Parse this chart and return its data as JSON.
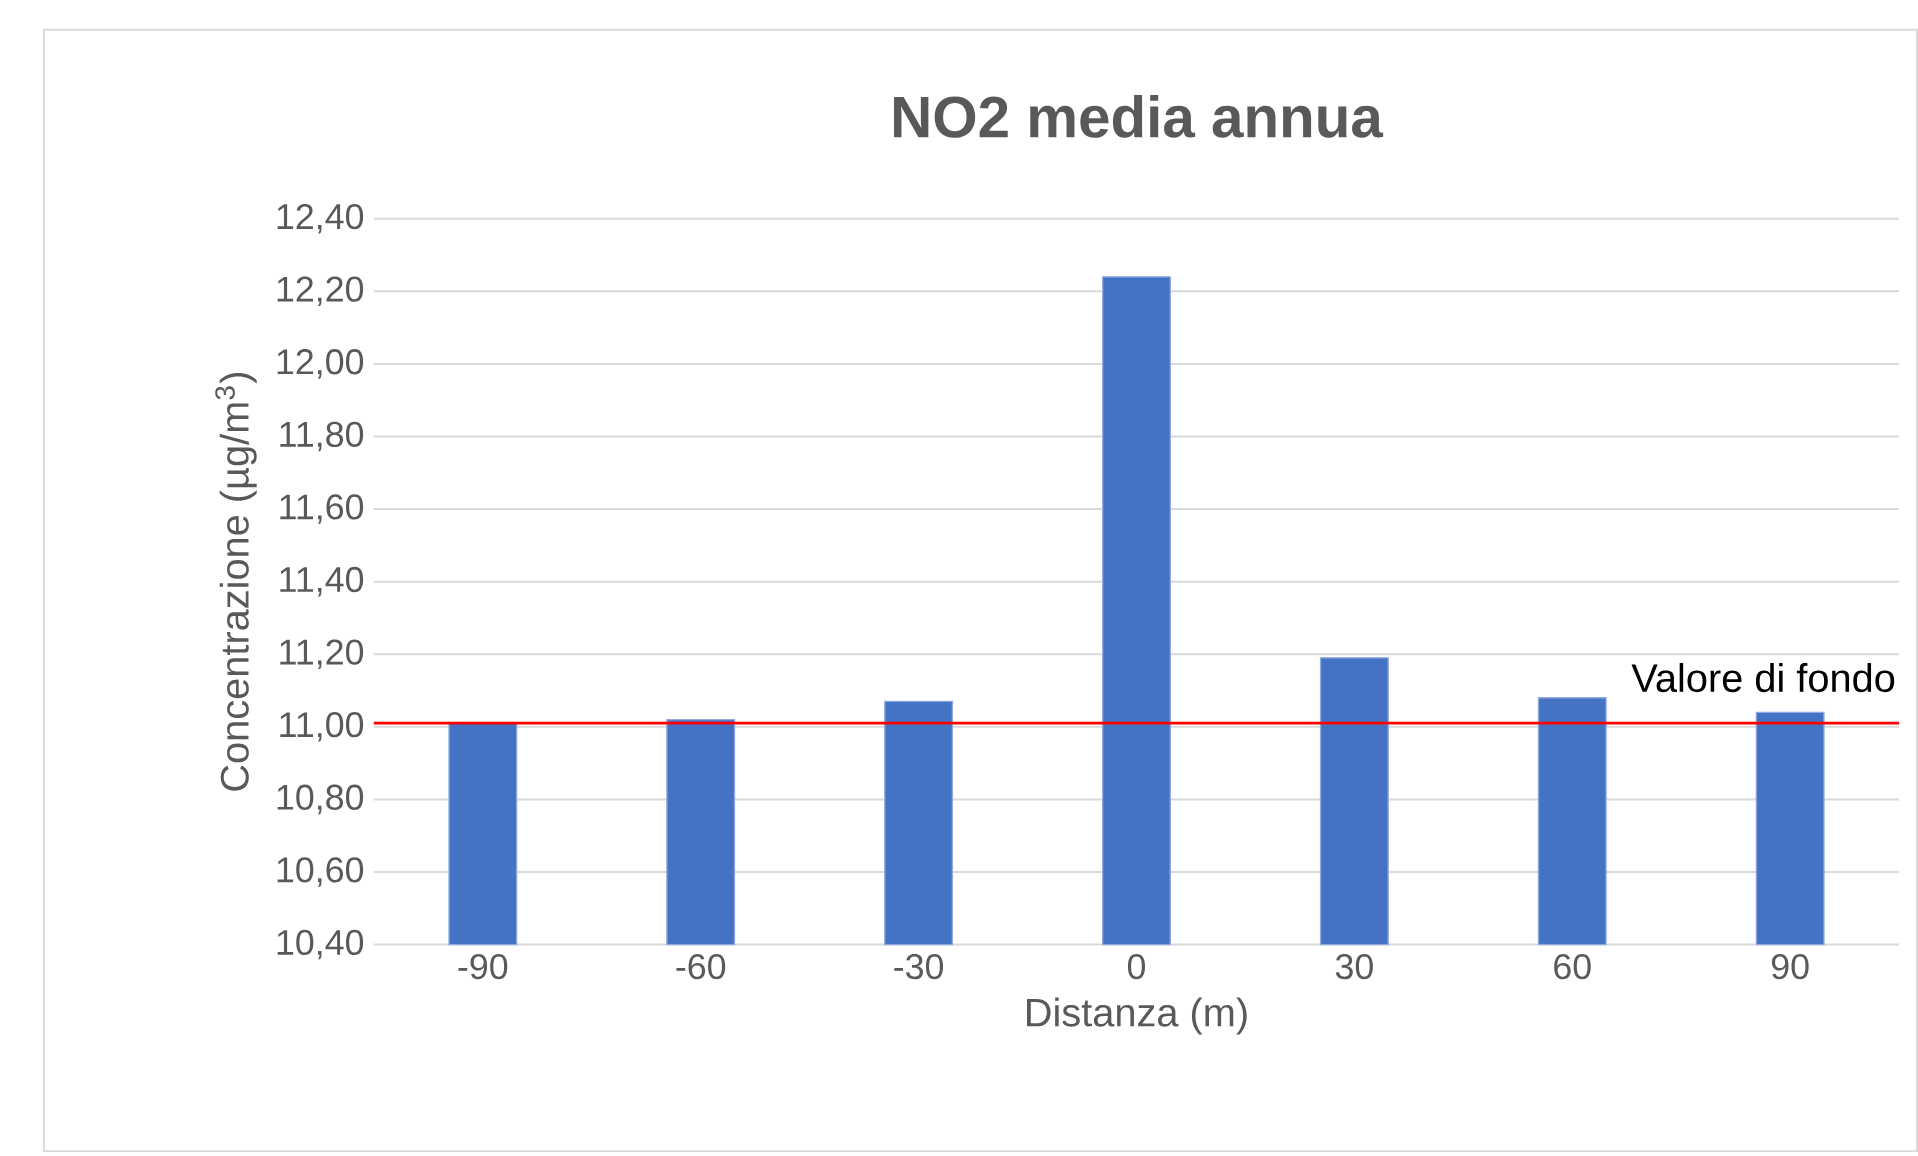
{
  "chart_data": {
    "type": "bar",
    "title": "NO2 media annua",
    "xlabel": "Distanza (m)",
    "ylabel": "Concentrazione (µg/m$^{3}$)",
    "categories": [
      "-90",
      "-60",
      "-30",
      "0",
      "30",
      "60",
      "90"
    ],
    "values": [
      11.01,
      11.02,
      11.07,
      12.24,
      11.19,
      11.08,
      11.04
    ],
    "color": "#4472c4",
    "ylim": [
      10.4,
      12.4
    ],
    "yticks": [
      {
        "value": 10.4,
        "label": "10,40"
      },
      {
        "value": 10.6,
        "label": "10,60"
      },
      {
        "value": 10.8,
        "label": "10,80"
      },
      {
        "value": 11.0,
        "label": "11,00"
      },
      {
        "value": 11.2,
        "label": "11,20"
      },
      {
        "value": 11.4,
        "label": "11,40"
      },
      {
        "value": 11.6,
        "label": "11,60"
      },
      {
        "value": 11.8,
        "label": "11,80"
      },
      {
        "value": 12.0,
        "label": "12,00"
      },
      {
        "value": 12.2,
        "label": "12,20"
      },
      {
        "value": 12.4,
        "label": "12,40"
      }
    ],
    "grid": "y",
    "ref_lines": [
      {
        "axis": "y",
        "value": 11.01,
        "label": "Valore di fondo",
        "color": "#ff0000"
      }
    ]
  }
}
